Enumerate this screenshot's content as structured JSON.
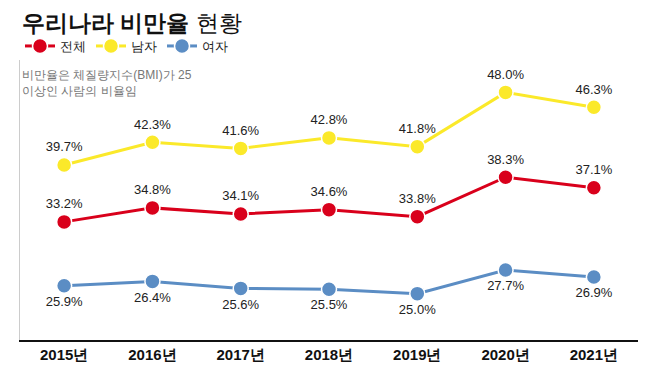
{
  "chart_data": {
    "type": "line",
    "title": "우리나라 비만율 현황",
    "note": "비만율은 체질량지수(BMI)가 25 이상인 사람의 비율임",
    "categories": [
      "2015년",
      "2016년",
      "2017년",
      "2018년",
      "2019년",
      "2020년",
      "2021년"
    ],
    "series": [
      {
        "name": "전체",
        "color": "#d9001b",
        "values": [
          33.2,
          34.8,
          34.1,
          34.6,
          33.8,
          38.3,
          37.1
        ],
        "value_labels": [
          "33.2%",
          "34.8%",
          "34.1%",
          "34.6%",
          "33.8%",
          "38.3%",
          "37.1%"
        ]
      },
      {
        "name": "남자",
        "color": "#fbe92a",
        "values": [
          39.7,
          42.3,
          41.6,
          42.8,
          41.8,
          48.0,
          46.3
        ],
        "value_labels": [
          "39.7%",
          "42.3%",
          "41.6%",
          "42.8%",
          "41.8%",
          "48.0%",
          "46.3%"
        ]
      },
      {
        "name": "여자",
        "color": "#5b8dc4",
        "values": [
          25.9,
          26.4,
          25.6,
          25.5,
          25.0,
          27.7,
          26.9
        ],
        "value_labels": [
          "25.9%",
          "26.4%",
          "25.6%",
          "25.5%",
          "25.0%",
          "27.7%",
          "26.9%"
        ]
      }
    ],
    "ylim": [
      19.7,
      51.7
    ],
    "grid": false,
    "legend": "top-left",
    "data_labels": true,
    "tick_labels": "x",
    "marker": "circle"
  }
}
